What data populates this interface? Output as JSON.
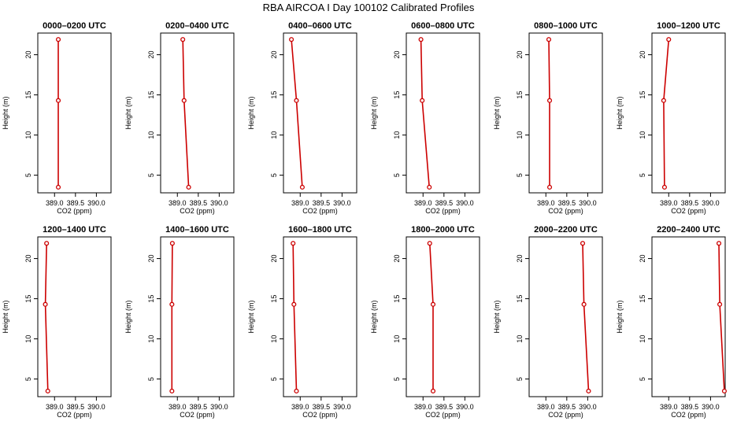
{
  "figure": {
    "title": "RBA AIRCOA I  Day 100102  Calibrated Profiles"
  },
  "chart_data": [
    {
      "type": "line",
      "title": "0000–0200 UTC",
      "xlabel": "CO2 (ppm)",
      "ylabel": "Height (m)",
      "xlim": [
        388.6,
        390.35
      ],
      "ylim": [
        2.8,
        22.7
      ],
      "xticks": [
        "389.0",
        "389.5",
        "390.0"
      ],
      "yticks": [
        "5",
        "10",
        "15",
        "20"
      ],
      "series": [
        {
          "x": [
            389.09,
            389.09,
            389.09
          ],
          "y": [
            3.5,
            14.3,
            21.9
          ]
        }
      ]
    },
    {
      "type": "line",
      "title": "0200–0400 UTC",
      "xlabel": "CO2 (ppm)",
      "ylabel": "Height (m)",
      "xlim": [
        388.6,
        390.35
      ],
      "ylim": [
        2.8,
        22.7
      ],
      "xticks": [
        "389.0",
        "389.5",
        "390.0"
      ],
      "yticks": [
        "5",
        "10",
        "15",
        "20"
      ],
      "series": [
        {
          "x": [
            389.27,
            389.16,
            389.13
          ],
          "y": [
            3.5,
            14.3,
            21.9
          ]
        }
      ]
    },
    {
      "type": "line",
      "title": "0400–0600 UTC",
      "xlabel": "CO2 (ppm)",
      "ylabel": "Height (m)",
      "xlim": [
        388.6,
        390.35
      ],
      "ylim": [
        2.8,
        22.7
      ],
      "xticks": [
        "389.0",
        "389.5",
        "390.0"
      ],
      "yticks": [
        "5",
        "10",
        "15",
        "20"
      ],
      "series": [
        {
          "x": [
            389.05,
            388.91,
            388.79
          ],
          "y": [
            3.5,
            14.3,
            21.9
          ]
        }
      ]
    },
    {
      "type": "line",
      "title": "0600–0800 UTC",
      "xlabel": "CO2 (ppm)",
      "ylabel": "Height (m)",
      "xlim": [
        388.6,
        390.35
      ],
      "ylim": [
        2.8,
        22.7
      ],
      "xticks": [
        "389.0",
        "389.5",
        "390.0"
      ],
      "yticks": [
        "5",
        "10",
        "15",
        "20"
      ],
      "series": [
        {
          "x": [
            389.15,
            388.98,
            388.95
          ],
          "y": [
            3.5,
            14.3,
            21.9
          ]
        }
      ]
    },
    {
      "type": "line",
      "title": "0800–1000 UTC",
      "xlabel": "CO2 (ppm)",
      "ylabel": "Height (m)",
      "xlim": [
        388.6,
        390.35
      ],
      "ylim": [
        2.8,
        22.7
      ],
      "xticks": [
        "389.0",
        "389.5",
        "390.0"
      ],
      "yticks": [
        "5",
        "10",
        "15",
        "20"
      ],
      "series": [
        {
          "x": [
            389.09,
            389.09,
            389.07
          ],
          "y": [
            3.5,
            14.3,
            21.9
          ]
        }
      ]
    },
    {
      "type": "line",
      "title": "1000–1200 UTC",
      "xlabel": "CO2 (ppm)",
      "ylabel": "Height (m)",
      "xlim": [
        388.6,
        390.35
      ],
      "ylim": [
        2.8,
        22.7
      ],
      "xticks": [
        "389.0",
        "389.5",
        "390.0"
      ],
      "yticks": [
        "5",
        "10",
        "15",
        "20"
      ],
      "series": [
        {
          "x": [
            388.9,
            388.88,
            389.0
          ],
          "y": [
            3.5,
            14.3,
            21.9
          ]
        }
      ]
    },
    {
      "type": "line",
      "title": "1200–1400 UTC",
      "xlabel": "CO2 (ppm)",
      "ylabel": "Height (m)",
      "xlim": [
        388.6,
        390.35
      ],
      "ylim": [
        2.8,
        22.7
      ],
      "xticks": [
        "389.0",
        "389.5",
        "390.0"
      ],
      "yticks": [
        "5",
        "10",
        "15",
        "20"
      ],
      "series": [
        {
          "x": [
            388.84,
            388.78,
            388.81
          ],
          "y": [
            3.5,
            14.3,
            21.9
          ]
        }
      ]
    },
    {
      "type": "line",
      "title": "1400–1600 UTC",
      "xlabel": "CO2 (ppm)",
      "ylabel": "Height (m)",
      "xlim": [
        388.6,
        390.35
      ],
      "ylim": [
        2.8,
        22.7
      ],
      "xticks": [
        "389.0",
        "389.5",
        "390.0"
      ],
      "yticks": [
        "5",
        "10",
        "15",
        "20"
      ],
      "series": [
        {
          "x": [
            388.87,
            388.87,
            388.88
          ],
          "y": [
            3.5,
            14.3,
            21.9
          ]
        }
      ]
    },
    {
      "type": "line",
      "title": "1600–1800 UTC",
      "xlabel": "CO2 (ppm)",
      "ylabel": "Height (m)",
      "xlim": [
        388.6,
        390.35
      ],
      "ylim": [
        2.8,
        22.7
      ],
      "xticks": [
        "389.0",
        "389.5",
        "390.0"
      ],
      "yticks": [
        "5",
        "10",
        "15",
        "20"
      ],
      "series": [
        {
          "x": [
            388.91,
            388.85,
            388.83
          ],
          "y": [
            3.5,
            14.3,
            21.9
          ]
        }
      ]
    },
    {
      "type": "line",
      "title": "1800–2000 UTC",
      "xlabel": "CO2 (ppm)",
      "ylabel": "Height (m)",
      "xlim": [
        388.6,
        390.35
      ],
      "ylim": [
        2.8,
        22.7
      ],
      "xticks": [
        "389.0",
        "389.5",
        "390.0"
      ],
      "yticks": [
        "5",
        "10",
        "15",
        "20"
      ],
      "series": [
        {
          "x": [
            389.24,
            389.24,
            389.16
          ],
          "y": [
            3.5,
            14.3,
            21.9
          ]
        }
      ]
    },
    {
      "type": "line",
      "title": "2000–2200 UTC",
      "xlabel": "CO2 (ppm)",
      "ylabel": "Height (m)",
      "xlim": [
        388.6,
        390.35
      ],
      "ylim": [
        2.8,
        22.7
      ],
      "xticks": [
        "389.0",
        "389.5",
        "390.0"
      ],
      "yticks": [
        "5",
        "10",
        "15",
        "20"
      ],
      "series": [
        {
          "x": [
            390.02,
            389.91,
            389.88
          ],
          "y": [
            3.5,
            14.3,
            21.9
          ]
        }
      ]
    },
    {
      "type": "line",
      "title": "2200–2400 UTC",
      "xlabel": "CO2 (ppm)",
      "ylabel": "Height (m)",
      "xlim": [
        388.6,
        390.35
      ],
      "ylim": [
        2.8,
        22.7
      ],
      "xticks": [
        "389.0",
        "389.5",
        "390.0"
      ],
      "yticks": [
        "5",
        "10",
        "15",
        "20"
      ],
      "series": [
        {
          "x": [
            390.33,
            390.22,
            390.2
          ],
          "y": [
            3.5,
            14.3,
            21.9
          ]
        }
      ]
    }
  ],
  "style": {
    "series_color": "#cc0000",
    "axis_color": "#000000",
    "background": "#ffffff"
  }
}
